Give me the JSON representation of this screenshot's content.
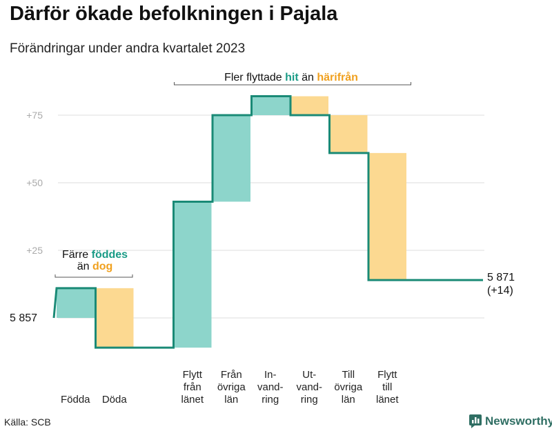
{
  "title": "Därför ökade befolkningen i Pajala",
  "subtitle": "Förändringar under andra kvartalet 2023",
  "source": "Källa: SCB",
  "logo": {
    "text": "Newsworthy",
    "icon": "bar-chart-logo-icon"
  },
  "colors": {
    "increase": "#8dd5cb",
    "decrease": "#fcd991",
    "line": "#1a8a76",
    "hit": "#1a9b86",
    "harifran": "#f0a01e",
    "grid": "#dddddd",
    "tick": "#aaaaaa",
    "bracket": "#555555"
  },
  "chart_data": {
    "type": "waterfall",
    "title": "Därför ökade befolkningen i Pajala",
    "subtitle": "Förändringar under andra kvartalet 2023",
    "start_label": "5 857",
    "start_value": 5857,
    "end_label": "5 871",
    "end_change_label": "(+14)",
    "end_value": 5871,
    "y_axis": {
      "ticks": [
        25,
        50,
        75
      ],
      "tick_labels": [
        "+25",
        "+50",
        "+75"
      ],
      "range": [
        -15,
        90
      ],
      "grid": true
    },
    "steps": [
      {
        "label": "Födda",
        "label_lines": [
          "Födda"
        ],
        "change": 11,
        "direction": "increase"
      },
      {
        "label": "Döda",
        "label_lines": [
          "Döda"
        ],
        "change": -22,
        "direction": "decrease"
      },
      {
        "label": "",
        "label_lines": [],
        "change": 0,
        "direction": "none"
      },
      {
        "label": "Flytt från länet",
        "label_lines": [
          "Flytt",
          "från",
          "länet"
        ],
        "change": 54,
        "direction": "increase"
      },
      {
        "label": "Från övriga län",
        "label_lines": [
          "Från",
          "övriga",
          "län"
        ],
        "change": 32,
        "direction": "increase"
      },
      {
        "label": "In-vandring",
        "label_lines": [
          "In-",
          "vand-",
          "ring"
        ],
        "change": 7,
        "direction": "increase"
      },
      {
        "label": "Ut-vandring",
        "label_lines": [
          "Ut-",
          "vand-",
          "ring"
        ],
        "change": -7,
        "direction": "decrease"
      },
      {
        "label": "Till övriga län",
        "label_lines": [
          "Till",
          "övriga",
          "län"
        ],
        "change": -14,
        "direction": "decrease"
      },
      {
        "label": "Flytt till länet",
        "label_lines": [
          "Flytt",
          "till",
          "länet"
        ],
        "change": -47,
        "direction": "decrease"
      }
    ],
    "annotations": [
      {
        "id": "births",
        "parts": [
          {
            "text": "Färre ",
            "style": "plain"
          },
          {
            "text": "föddes",
            "style": "hit"
          }
        ],
        "line2_parts": [
          {
            "text": "än ",
            "style": "plain"
          },
          {
            "text": "dog",
            "style": "harifran"
          }
        ],
        "spans_steps": [
          0,
          1
        ]
      },
      {
        "id": "migration",
        "parts": [
          {
            "text": "Fler flyttade ",
            "style": "plain"
          },
          {
            "text": "hit",
            "style": "hit"
          },
          {
            "text": " än ",
            "style": "plain"
          },
          {
            "text": "härifrån",
            "style": "harifran"
          }
        ],
        "spans_steps": [
          3,
          8
        ]
      }
    ]
  }
}
